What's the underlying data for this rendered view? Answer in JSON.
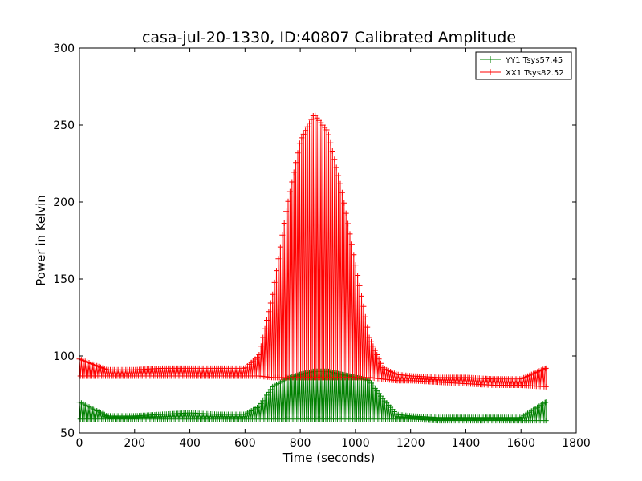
{
  "chart_data": {
    "type": "line",
    "title": "casa-jul-20-1330, ID:40807 Calibrated Amplitude",
    "xlabel": "Time (seconds)",
    "ylabel": "Power in Kelvin",
    "xlim": [
      0,
      1800
    ],
    "ylim": [
      50,
      300
    ],
    "xticks": [
      0,
      200,
      400,
      600,
      800,
      1000,
      1200,
      1400,
      1600,
      1800
    ],
    "yticks": [
      50,
      100,
      150,
      200,
      250,
      300
    ],
    "grid": false,
    "legend_position": "top-right",
    "marker": "+",
    "series": [
      {
        "name": "YY1 Tsys57.45",
        "color": "#008000",
        "x": [
          0,
          100,
          200,
          300,
          400,
          500,
          600,
          650,
          700,
          750,
          800,
          850,
          900,
          950,
          1000,
          1050,
          1100,
          1150,
          1200,
          1300,
          1400,
          1500,
          1600,
          1690
        ],
        "max": [
          70,
          61,
          61,
          62,
          63,
          62,
          62,
          67,
          80,
          85,
          88,
          90,
          90,
          88,
          86,
          84,
          72,
          62,
          61,
          60,
          60,
          60,
          60,
          70
        ],
        "min": [
          59,
          59,
          59,
          59,
          59,
          59,
          59,
          59,
          59,
          59,
          59,
          59,
          59,
          59,
          59,
          59,
          59,
          59,
          59,
          58,
          58,
          58,
          58,
          58
        ]
      },
      {
        "name": "XX1 Tsys82.52",
        "color": "#ff0000",
        "x": [
          0,
          100,
          200,
          300,
          400,
          500,
          600,
          650,
          700,
          750,
          800,
          850,
          900,
          950,
          1000,
          1050,
          1100,
          1150,
          1200,
          1300,
          1400,
          1500,
          1600,
          1690
        ],
        "max": [
          98,
          91,
          91,
          92,
          92,
          92,
          92,
          100,
          140,
          195,
          240,
          257,
          246,
          208,
          160,
          112,
          92,
          88,
          87,
          86,
          86,
          85,
          85,
          92
        ],
        "min": [
          87,
          87,
          87,
          87,
          87,
          87,
          87,
          87,
          86,
          86,
          86,
          86,
          86,
          86,
          86,
          86,
          85,
          84,
          84,
          83,
          82,
          81,
          81,
          80
        ]
      }
    ]
  }
}
